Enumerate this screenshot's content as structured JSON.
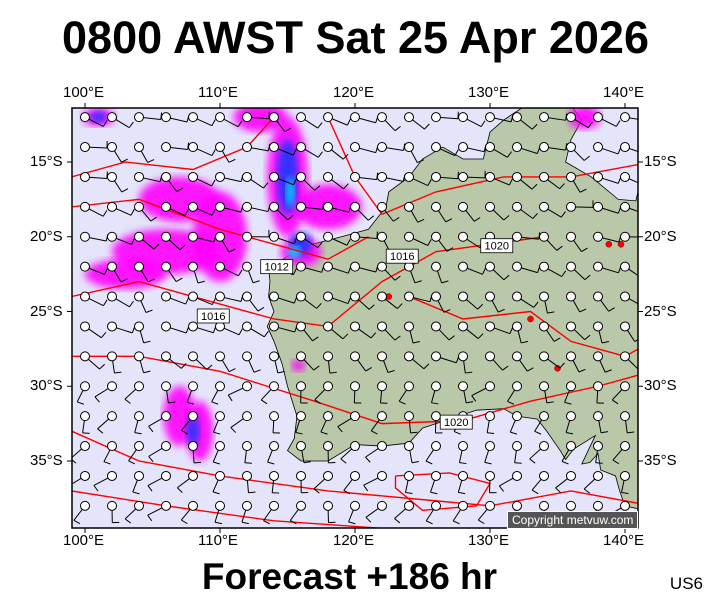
{
  "title": "0800 AWST Sat 25 Apr 2026",
  "footer": "Forecast +186 hr",
  "region_code": "US6",
  "copyright": "Copyright metvuw.com",
  "map": {
    "lon_labels": [
      "100°E",
      "110°E",
      "120°E",
      "130°E",
      "140°E"
    ],
    "lat_labels": [
      "15°S",
      "20°S",
      "25°S",
      "30°S",
      "35°S"
    ],
    "lon_values": [
      100,
      110,
      120,
      130,
      140
    ],
    "lat_values": [
      15,
      20,
      25,
      30,
      35
    ],
    "isobar_labels": [
      {
        "text": "1012",
        "lon": 114.2,
        "lat": 22.0
      },
      {
        "text": "1016",
        "lon": 109.5,
        "lat": 25.3
      },
      {
        "text": "1016",
        "lon": 123.5,
        "lat": 21.3
      },
      {
        "text": "1020",
        "lon": 130.5,
        "lat": 20.6
      },
      {
        "text": "1020",
        "lon": 127.5,
        "lat": 32.4
      }
    ],
    "colors": {
      "ocean": "#e4e4fa",
      "land": "#b8c8a8",
      "isobar": "#ff0000",
      "rain_light": "#ff00ff",
      "rain_mid": "#3030ff",
      "rain_heavy": "#00e0ff",
      "high": "#ff0000"
    }
  }
}
